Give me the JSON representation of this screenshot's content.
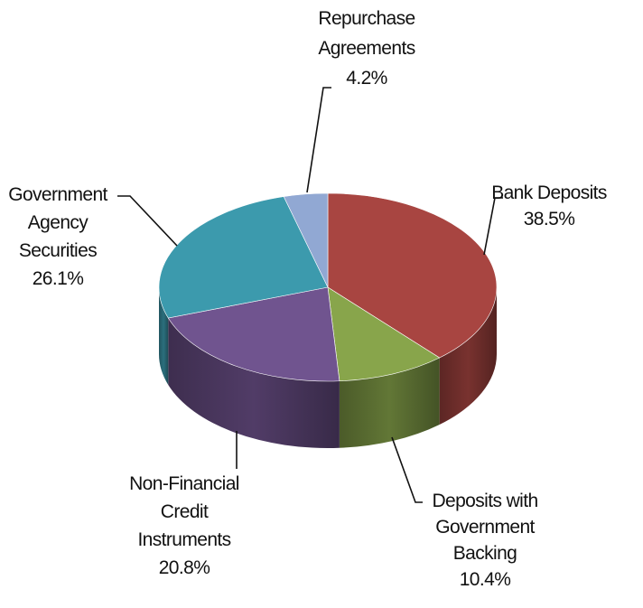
{
  "chart_data": {
    "type": "pie",
    "title": "",
    "style": "3d",
    "slices": [
      {
        "label": "Bank Deposits",
        "value": 38.5,
        "value_label": "38.5%",
        "color": "#a84541"
      },
      {
        "label": "Deposits with Government Backing",
        "value": 10.4,
        "value_label": "10.4%",
        "color": "#88a54b"
      },
      {
        "label": "Non-Financial Credit Instruments",
        "value": 20.8,
        "value_label": "20.8%",
        "color": "#70548f"
      },
      {
        "label": "Government Agency Securities",
        "value": 26.1,
        "value_label": "26.1%",
        "color": "#3c9aad"
      },
      {
        "label": "Repurchase Agreements",
        "value": 4.2,
        "value_label": "4.2%",
        "color": "#91a8d3"
      }
    ],
    "label_lines": [
      [
        "Bank Deposits",
        "38.5%"
      ],
      [
        "Deposits with",
        "Government",
        "Backing",
        "10.4%"
      ],
      [
        "Non-Financial",
        "Credit",
        "Instruments",
        "20.8%"
      ],
      [
        "Government",
        "Agency",
        "Securities",
        "26.1%"
      ],
      [
        "Repurchase",
        "Agreements",
        "4.2%"
      ]
    ]
  }
}
